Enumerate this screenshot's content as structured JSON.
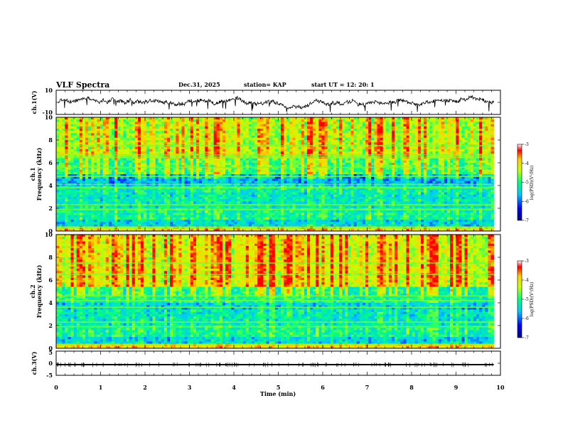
{
  "header": {
    "title": "VLF Spectra",
    "date": "Dec.31, 2025",
    "station": "station= KAP",
    "start_ut": "start  UT  =   12: 20: 1"
  },
  "chart_data": [
    {
      "type": "line",
      "panel": "ch1-waveform",
      "ylabel": "ch.1(V)",
      "ylim": [
        -10,
        10
      ],
      "yticks": [
        "10",
        "-10"
      ],
      "xlim": [
        0,
        10
      ],
      "series": [
        {
          "name": "ch.1",
          "approx_range": [
            -6,
            6
          ],
          "mean": 0
        }
      ]
    },
    {
      "type": "heatmap",
      "panel": "ch1-spectrogram",
      "ylabel": "Frequency (kHz)",
      "ylabel2": "ch.1",
      "ylim": [
        0,
        10
      ],
      "yticks": [
        "0",
        "2",
        "4",
        "6",
        "8",
        "10"
      ],
      "xlim": [
        0,
        10
      ],
      "data_extent_min": [
        0,
        9.85
      ],
      "colorbar": {
        "label": "log(PSD)(V²/Hz)",
        "range": [
          -7,
          -3
        ],
        "ticks": [
          "-3",
          "-4",
          "-5",
          "-6",
          "-7"
        ]
      },
      "bands_khz": [
        {
          "f": [
            0,
            0.5
          ],
          "level": -4.0
        },
        {
          "f": [
            0.5,
            1.0
          ],
          "level": -5.6
        },
        {
          "f": [
            1.0,
            2.0
          ],
          "level": -5.2
        },
        {
          "f": [
            2.0,
            3.5
          ],
          "level": -5.4
        },
        {
          "f": [
            3.5,
            4.0
          ],
          "level": -5.3
        },
        {
          "f": [
            4.0,
            5.0
          ],
          "level": -5.8
        },
        {
          "f": [
            5.0,
            6.5
          ],
          "level": -5.0
        },
        {
          "f": [
            6.5,
            10.0
          ],
          "level": -4.5
        }
      ],
      "lines_khz": [
        0.3,
        1.9,
        2.3,
        3.8,
        4.1,
        4.8,
        5.6,
        6.5,
        6.7,
        7.5
      ]
    },
    {
      "type": "heatmap",
      "panel": "ch2-spectrogram",
      "ylabel": "Frequency (kHz)",
      "ylabel2": "ch.2",
      "ylim": [
        0,
        10
      ],
      "yticks": [
        "0",
        "2",
        "4",
        "6",
        "8",
        "10"
      ],
      "xlim": [
        0,
        10
      ],
      "data_extent_min": [
        0,
        9.85
      ],
      "colorbar": {
        "label": "log(PSD)(V²/Hz)",
        "range": [
          -7,
          -3
        ],
        "ticks": [
          "-3",
          "-4",
          "-5",
          "-6",
          "-7"
        ]
      },
      "bands_khz": [
        {
          "f": [
            0,
            0.5
          ],
          "level": -4.0
        },
        {
          "f": [
            0.5,
            1.0
          ],
          "level": -5.6
        },
        {
          "f": [
            1.0,
            2.0
          ],
          "level": -5.2
        },
        {
          "f": [
            2.0,
            3.5
          ],
          "level": -5.4
        },
        {
          "f": [
            3.5,
            4.0
          ],
          "level": -5.6
        },
        {
          "f": [
            4.0,
            5.5
          ],
          "level": -5.2
        },
        {
          "f": [
            5.5,
            10.0
          ],
          "level": -4.3
        }
      ],
      "lines_khz": [
        0.3,
        1.9,
        2.3,
        3.6,
        4.2,
        4.6,
        6.5,
        7.5
      ]
    },
    {
      "type": "line",
      "panel": "ch3-waveform",
      "ylabel": "ch.3(V)",
      "ylim": [
        -5,
        5
      ],
      "yticks": [
        "5",
        "0",
        "-5"
      ],
      "xlim": [
        0,
        10
      ],
      "xlabel": "Time (min)",
      "xticks": [
        "0",
        "1",
        "2",
        "3",
        "4",
        "5",
        "6",
        "7",
        "8",
        "9",
        "10"
      ],
      "series": [
        {
          "name": "ch.3",
          "approx_range": [
            -0.9,
            -0.3
          ],
          "mean": -0.6
        }
      ]
    }
  ],
  "colors": {
    "scale": [
      "#000080",
      "#0000ff",
      "#00c8ff",
      "#00ff80",
      "#c8ff00",
      "#ffd000",
      "#ff0000"
    ],
    "axis": "#000000",
    "trace": "#000000"
  }
}
